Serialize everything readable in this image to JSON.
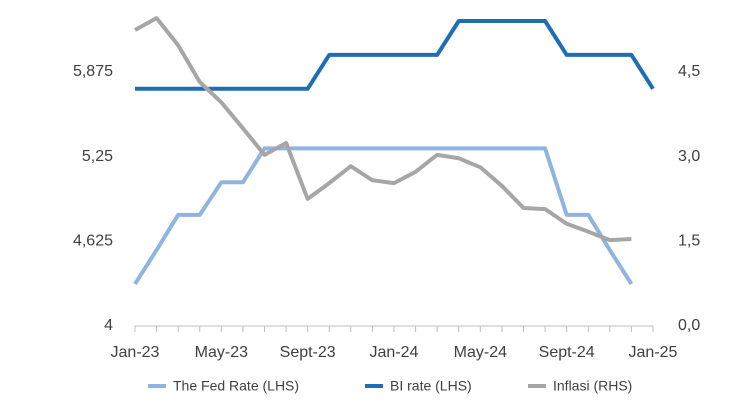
{
  "chart_data": {
    "type": "line",
    "categories": [
      "Jan-23",
      null,
      null,
      null,
      "May-23",
      null,
      null,
      null,
      "Sept-23",
      null,
      null,
      null,
      "Jan-24",
      null,
      null,
      null,
      "May-24",
      null,
      null,
      null,
      "Sept-24",
      null,
      null,
      null,
      "Jan-25"
    ],
    "series": [
      {
        "name": "The Fed Rate (LHS)",
        "color": "#8fb4dd",
        "axis": "y",
        "values": [
          4.31,
          4.56,
          4.82,
          4.82,
          5.06,
          5.06,
          5.31,
          5.31,
          5.31,
          5.31,
          5.31,
          5.31,
          5.31,
          5.31,
          5.31,
          5.31,
          5.31,
          5.31,
          5.31,
          5.31,
          4.82,
          4.82,
          4.56,
          4.31,
          null
        ]
      },
      {
        "name": "BI rate (LHS)",
        "color": "#1f6db5",
        "axis": "y",
        "values": [
          5.75,
          5.75,
          5.75,
          5.75,
          5.75,
          5.75,
          5.75,
          5.75,
          5.75,
          6.0,
          6.0,
          6.0,
          6.0,
          6.0,
          6.0,
          6.25,
          6.25,
          6.25,
          6.25,
          6.25,
          6.0,
          6.0,
          6.0,
          6.0,
          5.75
        ]
      },
      {
        "name": "Inflasi (RHS)",
        "color": "#a6a6a6",
        "axis": "y2",
        "values": [
          5.24,
          5.45,
          4.97,
          4.32,
          3.96,
          3.5,
          3.03,
          3.24,
          2.25,
          2.53,
          2.83,
          2.58,
          2.53,
          2.73,
          3.03,
          2.97,
          2.81,
          2.48,
          2.09,
          2.07,
          1.81,
          1.67,
          1.52,
          1.54,
          null
        ]
      }
    ],
    "ylim": [
      4,
      6.25
    ],
    "yticks": [
      4,
      {
        "value": 4.625,
        "label": "4,625"
      },
      {
        "value": 5.25,
        "label": "5,25"
      },
      {
        "value": 5.875,
        "label": "5,875"
      }
    ],
    "y2lim": [
      0,
      5.4
    ],
    "y2ticks": [
      {
        "value": 0,
        "label": "0,0"
      },
      {
        "value": 1.5,
        "label": "1,5"
      },
      {
        "value": 3,
        "label": "3,0"
      },
      {
        "value": 4.5,
        "label": "4,5"
      }
    ],
    "grid": false,
    "legend": "bottom"
  }
}
